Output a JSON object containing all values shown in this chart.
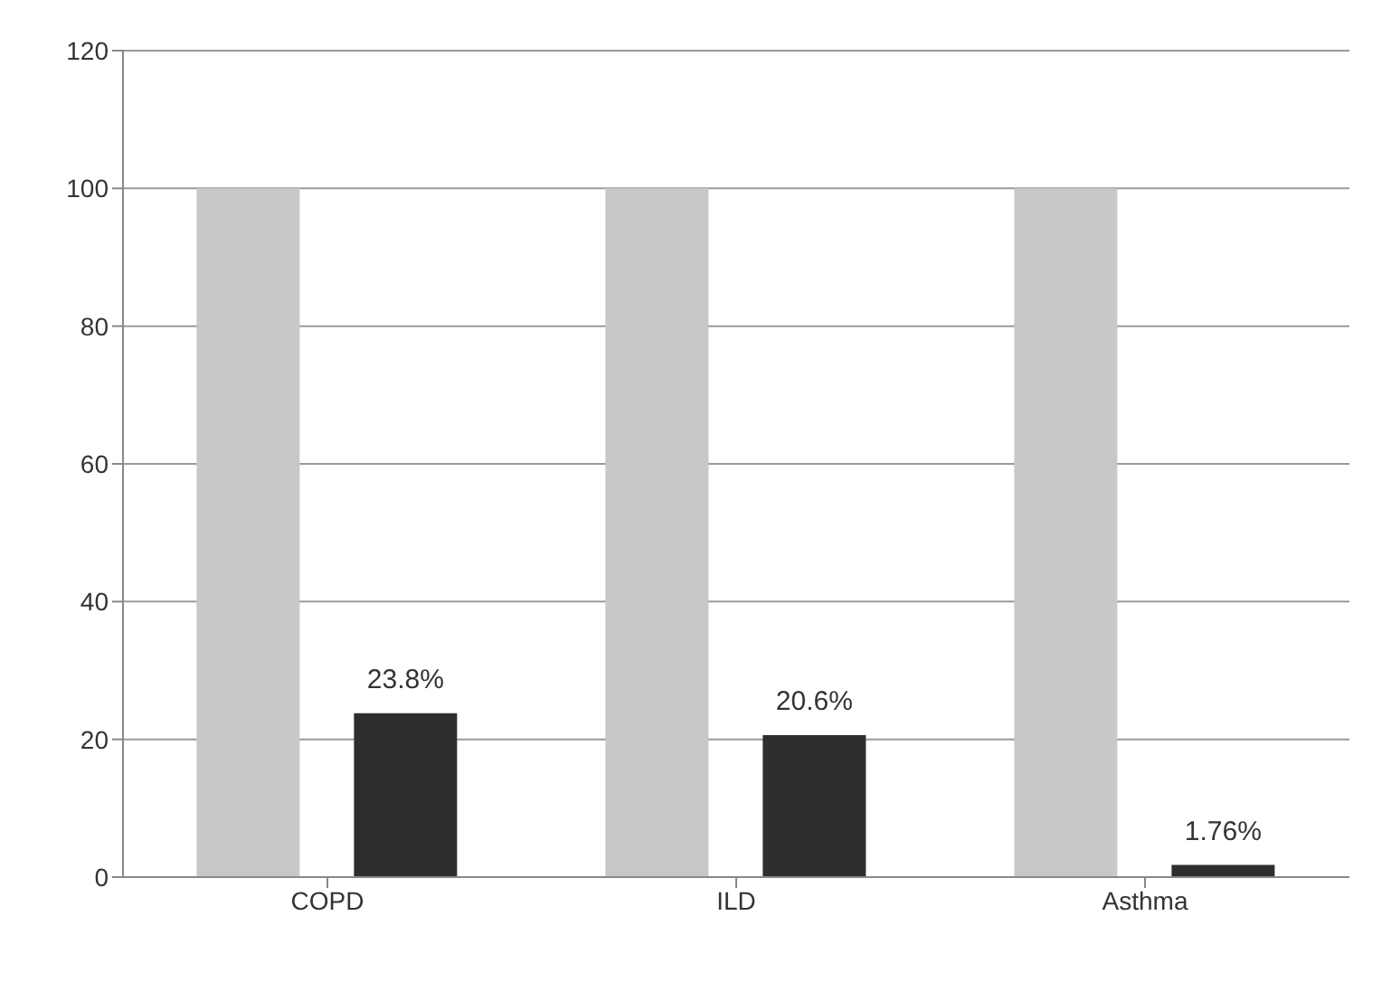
{
  "chart_data": {
    "type": "bar",
    "categories": [
      "COPD",
      "ILD",
      "Asthma"
    ],
    "series": [
      {
        "color": "#c8c8c8",
        "values": [
          100,
          100,
          100
        ]
      },
      {
        "color": "#2e2e2e",
        "values": [
          23.8,
          20.6,
          1.76
        ],
        "value_labels": [
          "23.8%",
          "20.6%",
          "1.76%"
        ]
      }
    ],
    "ylim": [
      0,
      120
    ],
    "yticks": [
      0,
      20,
      40,
      60,
      80,
      100,
      120
    ],
    "grid": "y",
    "legend": false
  }
}
